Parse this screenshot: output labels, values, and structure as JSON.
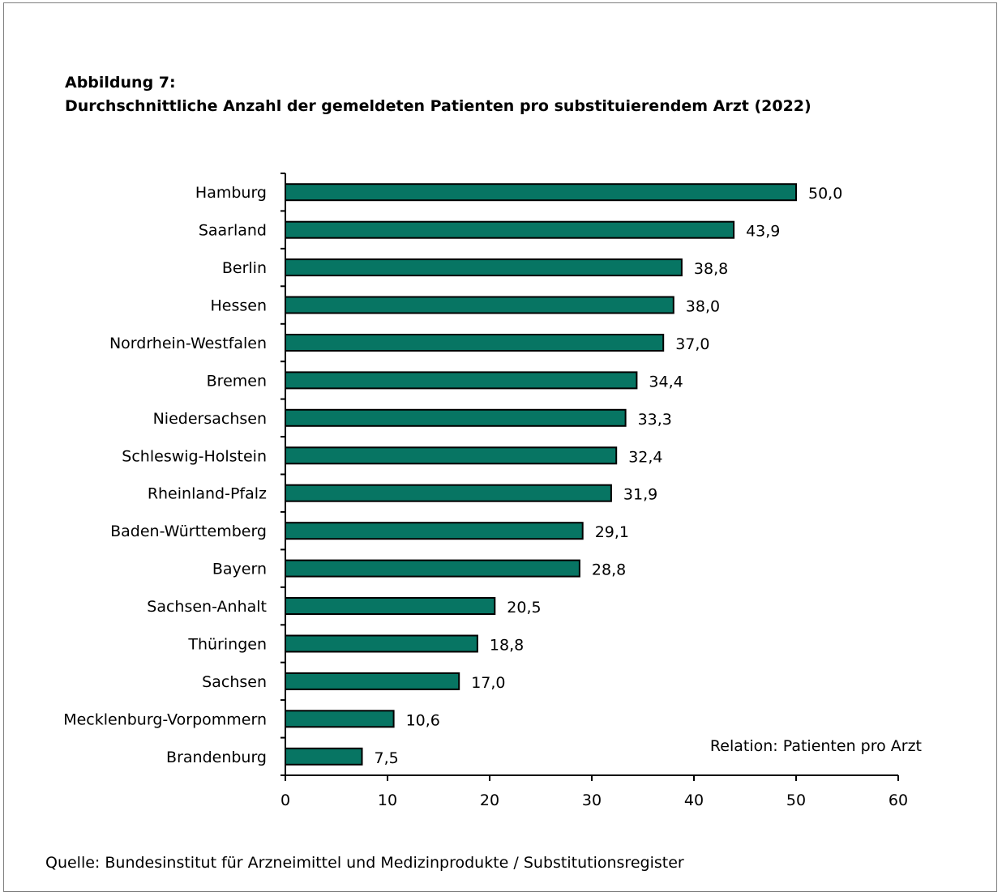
{
  "figure": {
    "label": "Abbildung 7:",
    "title": "Durchschnittliche Anzahl der gemeldeten Patienten pro substituierendem Arzt (2022)",
    "source": "Quelle: Bundesinstitut für Arzneimittel und Medizinprodukte / Substitutionsregister"
  },
  "chart_data": {
    "type": "bar",
    "orientation": "horizontal",
    "categories": [
      "Hamburg",
      "Saarland",
      "Berlin",
      "Hessen",
      "Nordrhein-Westfalen",
      "Bremen",
      "Niedersachsen",
      "Schleswig-Holstein",
      "Rheinland-Pfalz",
      "Baden-Württemberg",
      "Bayern",
      "Sachsen-Anhalt",
      "Thüringen",
      "Sachsen",
      "Mecklenburg-Vorpommern",
      "Brandenburg"
    ],
    "values": [
      50.0,
      43.9,
      38.8,
      38.0,
      37.0,
      34.4,
      33.3,
      32.4,
      31.9,
      29.1,
      28.8,
      20.5,
      18.8,
      17.0,
      10.6,
      7.5
    ],
    "data_labels": [
      "50,0",
      "43,9",
      "38,8",
      "38,0",
      "37,0",
      "34,4",
      "33,3",
      "32,4",
      "31,9",
      "29,1",
      "28,8",
      "20,5",
      "18,8",
      "17,0",
      "10,6",
      "7,5"
    ],
    "xlim": [
      0,
      60
    ],
    "xticks": [
      0,
      10,
      20,
      30,
      40,
      50,
      60
    ],
    "xtick_labels": [
      "0",
      "10",
      "20",
      "30",
      "40",
      "50",
      "60"
    ],
    "annotation": "Relation: Patienten pro Arzt",
    "bar_color": "#077563",
    "bar_edge_color": "#000000",
    "grid": false
  }
}
